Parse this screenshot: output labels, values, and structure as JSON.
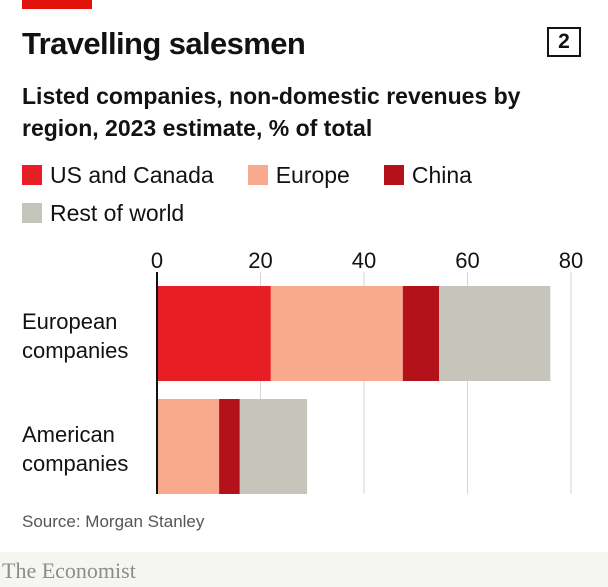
{
  "header": {
    "title": "Travelling salesmen",
    "chart_number": "2",
    "subtitle": "Listed companies, non-domestic revenues by region, 2023 estimate, % of total"
  },
  "source": "Source: Morgan Stanley",
  "logo": "The Economist",
  "colors": {
    "US and Canada": "#e81e25",
    "Europe": "#f9a98e",
    "China": "#b3121b",
    "Rest of world": "#c6c5bb",
    "accent": "#e3120b"
  },
  "chart_data": {
    "type": "bar",
    "orientation": "horizontal",
    "stacked": true,
    "title": "Travelling salesmen",
    "subtitle": "Listed companies, non-domestic revenues by region, 2023 estimate, % of total",
    "categories": [
      "European companies",
      "American companies"
    ],
    "category_lines": [
      [
        "European",
        "companies"
      ],
      [
        "American",
        "companies"
      ]
    ],
    "series": [
      {
        "name": "US and Canada",
        "values": [
          22,
          0
        ]
      },
      {
        "name": "Europe",
        "values": [
          25.5,
          12
        ]
      },
      {
        "name": "China",
        "values": [
          7,
          4
        ]
      },
      {
        "name": "Rest of world",
        "values": [
          21.5,
          13
        ]
      }
    ],
    "xlim": [
      0,
      80
    ],
    "xticks": [
      0,
      20,
      40,
      60,
      80
    ],
    "xaxis_position": "top",
    "grid": true,
    "legend_position": "top-left",
    "source": "Source: Morgan Stanley"
  }
}
